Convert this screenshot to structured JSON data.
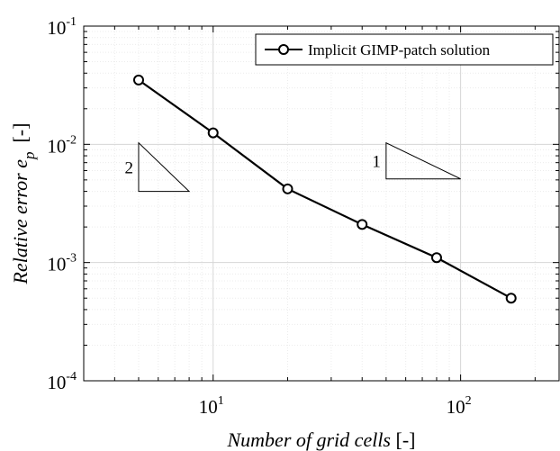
{
  "chart_data": {
    "type": "line",
    "title": "",
    "xlabel": "Number of grid cells",
    "xlabel_unit": "[-]",
    "ylabel_main": "Relative error",
    "ylabel_symbol": "e",
    "ylabel_subscript": "p",
    "ylabel_unit": "[-]",
    "xscale": "log",
    "yscale": "log",
    "xlim": [
      3,
      250
    ],
    "ylim": [
      0.0001,
      0.1
    ],
    "x_ticks": [
      {
        "value": 10,
        "base": "10",
        "exp": "1"
      },
      {
        "value": 100,
        "base": "10",
        "exp": "2"
      }
    ],
    "y_ticks": [
      {
        "value": 0.0001,
        "base": "10",
        "exp": "-4"
      },
      {
        "value": 0.001,
        "base": "10",
        "exp": "-3"
      },
      {
        "value": 0.01,
        "base": "10",
        "exp": "-2"
      },
      {
        "value": 0.1,
        "base": "10",
        "exp": "-1"
      }
    ],
    "grid": true,
    "minor_grid": true,
    "legend_position": "top-right",
    "series": [
      {
        "name": "Implicit GIMP-patch solution",
        "color": "#000000",
        "marker": "open-circle",
        "x": [
          5,
          10,
          20,
          40,
          80,
          160
        ],
        "y": [
          0.035,
          0.0125,
          0.0042,
          0.0021,
          0.0011,
          0.0005
        ]
      }
    ],
    "slope_triangles": [
      {
        "label": "2",
        "x1": 5,
        "x2": 8,
        "y_top": 0.0103,
        "y_bottom": 0.004,
        "label_side": "left"
      },
      {
        "label": "1",
        "x1": 50,
        "x2": 100,
        "y_top": 0.0103,
        "y_bottom": 0.0051,
        "label_side": "left"
      }
    ]
  }
}
